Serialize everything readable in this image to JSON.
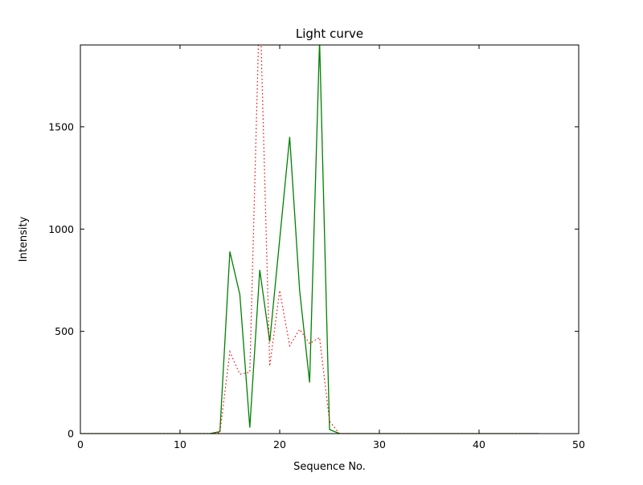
{
  "chart_data": {
    "type": "line",
    "title": "Light curve",
    "xlabel": "Sequence No.",
    "ylabel": "Intensity",
    "xlim": [
      0,
      50
    ],
    "ylim": [
      0,
      1900
    ],
    "x_ticks": [
      0,
      10,
      20,
      30,
      40,
      50
    ],
    "y_ticks": [
      0,
      500,
      1000,
      1500
    ],
    "grid": false,
    "legend": "none",
    "background_color": "#ffffff",
    "axis_color": "#000000",
    "x": [
      0,
      1,
      2,
      3,
      4,
      5,
      6,
      7,
      8,
      9,
      10,
      11,
      12,
      13,
      14,
      15,
      16,
      17,
      18,
      19,
      20,
      21,
      22,
      23,
      24,
      25,
      26,
      27,
      28,
      29,
      30,
      31,
      32,
      33,
      34,
      35,
      36,
      37,
      38,
      39,
      40,
      41,
      42,
      43,
      44,
      45,
      46
    ],
    "series": [
      {
        "name": "green_solid",
        "color": "#008000",
        "line_style": "solid",
        "values": [
          0,
          0,
          0,
          0,
          0,
          0,
          0,
          0,
          0,
          0,
          0,
          0,
          0,
          0,
          10,
          890,
          680,
          30,
          800,
          450,
          950,
          1450,
          700,
          250,
          1920,
          20,
          0,
          0,
          0,
          0,
          0,
          0,
          0,
          0,
          0,
          0,
          0,
          0,
          0,
          0,
          0,
          0,
          0,
          0,
          0,
          0,
          0
        ]
      },
      {
        "name": "red_dotted",
        "color": "#ff0000",
        "line_style": "dotted",
        "values": [
          0,
          0,
          0,
          0,
          0,
          0,
          0,
          0,
          0,
          0,
          0,
          0,
          0,
          0,
          5,
          400,
          290,
          300,
          2150,
          330,
          700,
          430,
          510,
          440,
          470,
          60,
          0,
          0,
          0,
          0,
          0,
          0,
          0,
          0,
          0,
          0,
          0,
          0,
          0,
          0,
          0,
          0,
          0,
          0,
          0,
          0,
          0
        ]
      }
    ]
  }
}
